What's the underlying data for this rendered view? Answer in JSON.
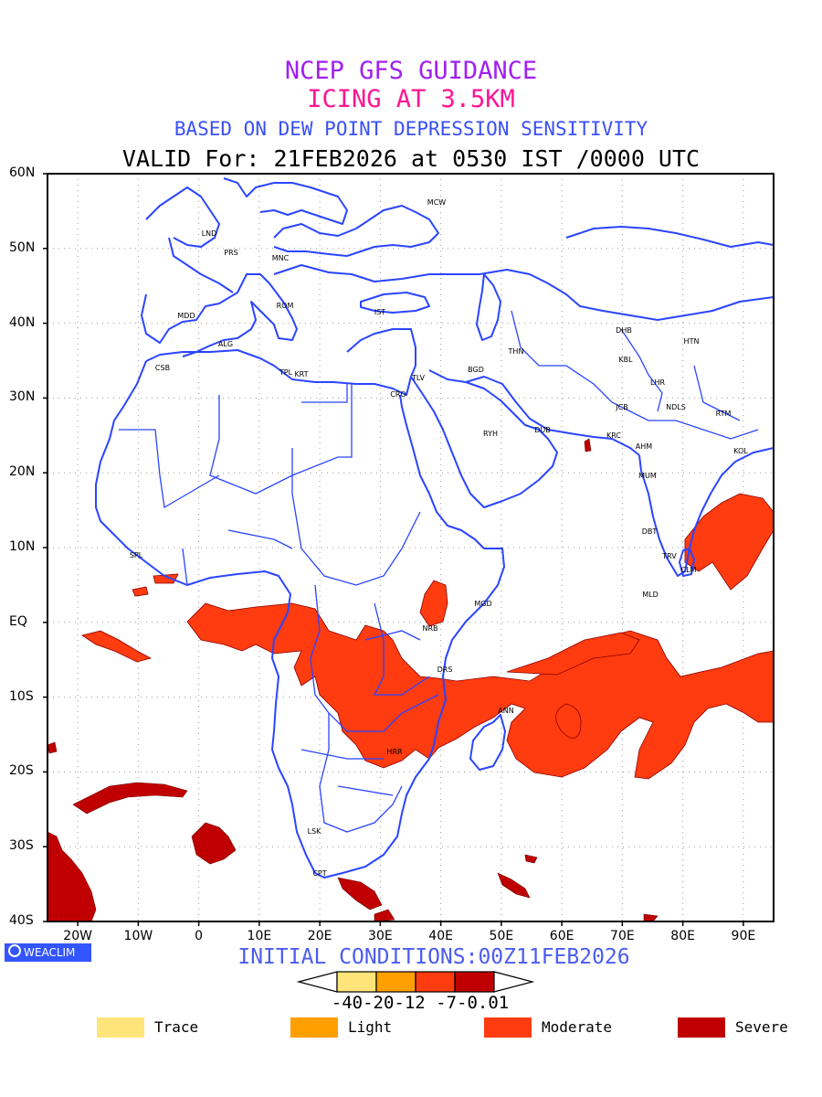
{
  "header": {
    "line1": "NCEP GFS GUIDANCE",
    "line2": "ICING AT 3.5KM",
    "line3": "BASED ON DEW POINT DEPRESSION SENSITIVITY",
    "valid": "VALID For: 21FEB2026 at 0530 IST /0000 UTC"
  },
  "axes": {
    "lat_labels": [
      "60N",
      "50N",
      "40N",
      "30N",
      "20N",
      "10N",
      "EQ",
      "10S",
      "20S",
      "30S",
      "40S"
    ],
    "lon_labels": [
      "20W",
      "10W",
      "0",
      "10E",
      "20E",
      "30E",
      "40E",
      "50E",
      "60E",
      "70E",
      "80E",
      "90E"
    ],
    "lat_range": [
      -40,
      60
    ],
    "lon_range": [
      -25,
      95
    ],
    "grid": "dotted"
  },
  "cities": [
    "MCW",
    "LND",
    "PRS",
    "MNC",
    "ROM",
    "IST",
    "MDD",
    "ALG",
    "CSB",
    "TPL",
    "KRT",
    "CRO",
    "TLV",
    "BGD",
    "THN",
    "DHB",
    "HTN",
    "KBL",
    "LHR",
    "JCB",
    "NDLS",
    "RTM",
    "RYH",
    "DUB",
    "KRC",
    "AHM",
    "KOL",
    "MUM",
    "DBT",
    "TRV",
    "CLM",
    "MLD",
    "SPL",
    "MGD",
    "NRB",
    "DRS",
    "ANN",
    "HRR",
    "LSK",
    "CPT"
  ],
  "footer": {
    "logo_text": "WEACLIM",
    "initial_conditions": "INITIAL CONDITIONS:00Z11FEB2026",
    "colorbar_ticks": "-40-20-12 -7-0.01"
  },
  "legend": [
    {
      "label": "Trace",
      "color": "#ffe47a"
    },
    {
      "label": "Light",
      "color": "#ff9f00"
    },
    {
      "label": "Moderate",
      "color": "#ff3b10"
    },
    {
      "label": "Severe",
      "color": "#c00000"
    }
  ],
  "colors": {
    "coast": "#2a45ff",
    "moderate": "#ff3b10",
    "severe": "#c00000",
    "title_purple": "#a020f0",
    "title_pink": "#ff1493",
    "title_blue": "#3a4ff5"
  }
}
